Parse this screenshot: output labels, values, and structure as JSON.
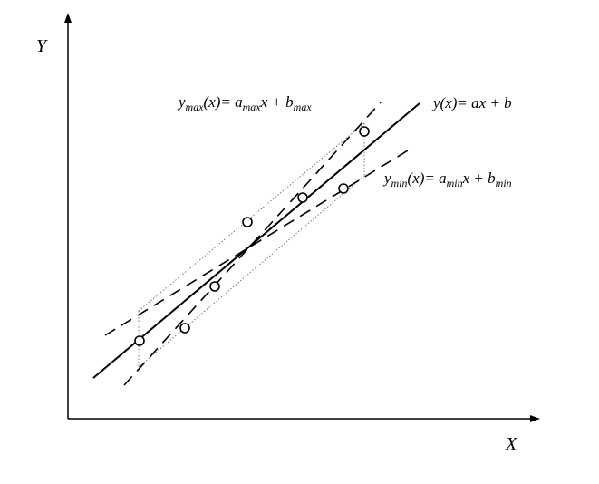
{
  "axes": {
    "x_label": "X",
    "y_label": "Y"
  },
  "equations": {
    "fit": {
      "text": "y(x)= ax + b"
    },
    "max": {
      "y": "y",
      "y_sub": "max",
      "mid": "(x)= a",
      "a_sub": "max",
      "tail": "x + b",
      "b_sub": "max"
    },
    "min": {
      "y": "y",
      "y_sub": "min",
      "mid": "(x)= a",
      "a_sub": "min",
      "tail": "x + b",
      "b_sub": "min"
    }
  },
  "style": {
    "line_color": "#000000",
    "guide_color": "#777777"
  }
}
